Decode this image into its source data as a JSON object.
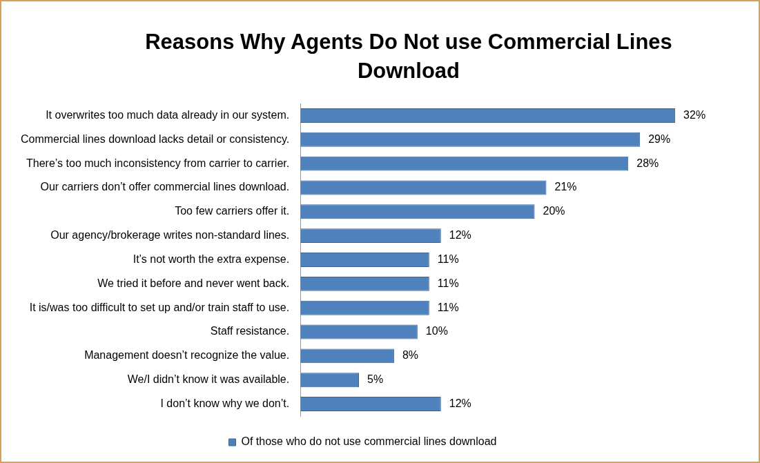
{
  "chart_data": {
    "type": "bar",
    "orientation": "horizontal",
    "title": "Reasons Why Agents Do Not use Commercial Lines Download",
    "categories": [
      "It overwrites too much data already in our system.",
      "Commercial lines download lacks detail or consistency.",
      "There’s too much inconsistency from carrier to carrier.",
      "Our carriers don’t offer commercial lines download.",
      "Too few carriers offer it.",
      "Our agency/brokerage writes non-standard lines.",
      "It’s not worth the extra expense.",
      "We tried it before and never went back.",
      "It is/was too difficult to set up and/or train staff to use.",
      "Staff resistance.",
      "Management doesn’t recognize the value.",
      "We/I didn’t know it was available.",
      "I don’t know why we don’t."
    ],
    "series": [
      {
        "name": "Of those who do not use commercial lines download",
        "color": "#4f81bd",
        "values": [
          32,
          29,
          28,
          21,
          20,
          12,
          11,
          11,
          11,
          10,
          8,
          5,
          12
        ],
        "value_labels": [
          "32%",
          "29%",
          "28%",
          "21%",
          "20%",
          "12%",
          "11%",
          "11%",
          "11%",
          "10%",
          "8%",
          "5%",
          "12%"
        ]
      }
    ],
    "legend": "bottom",
    "tick_labels": "y"
  }
}
